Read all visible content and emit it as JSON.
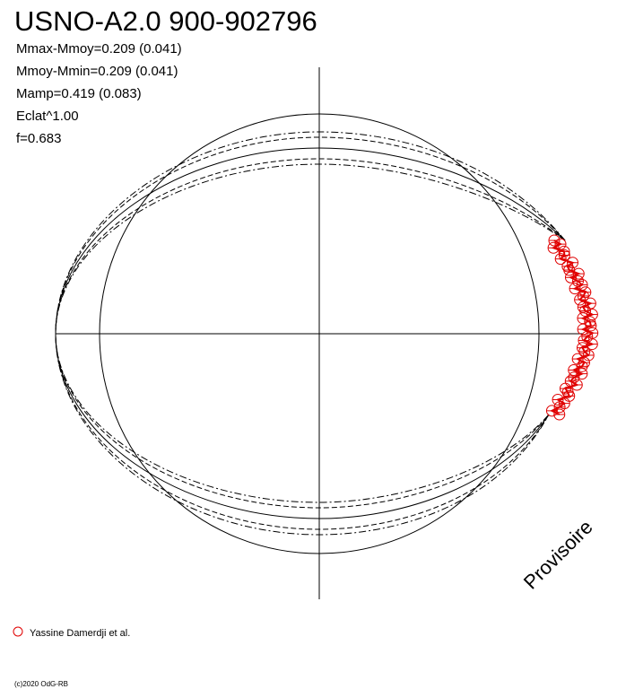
{
  "title": "USNO-A2.0 900-902796",
  "stats": [
    "Mmax-Mmoy=0.209 (0.041)",
    "Mmoy-Mmin=0.209 (0.041)",
    "Mamp=0.419 (0.083)",
    "Eclat^1.00",
    "f=0.683"
  ],
  "legend": "Yassine Damerdji et al.",
  "watermark": "Provisoire",
  "copyright": "(c)2020 OdG-RB"
}
